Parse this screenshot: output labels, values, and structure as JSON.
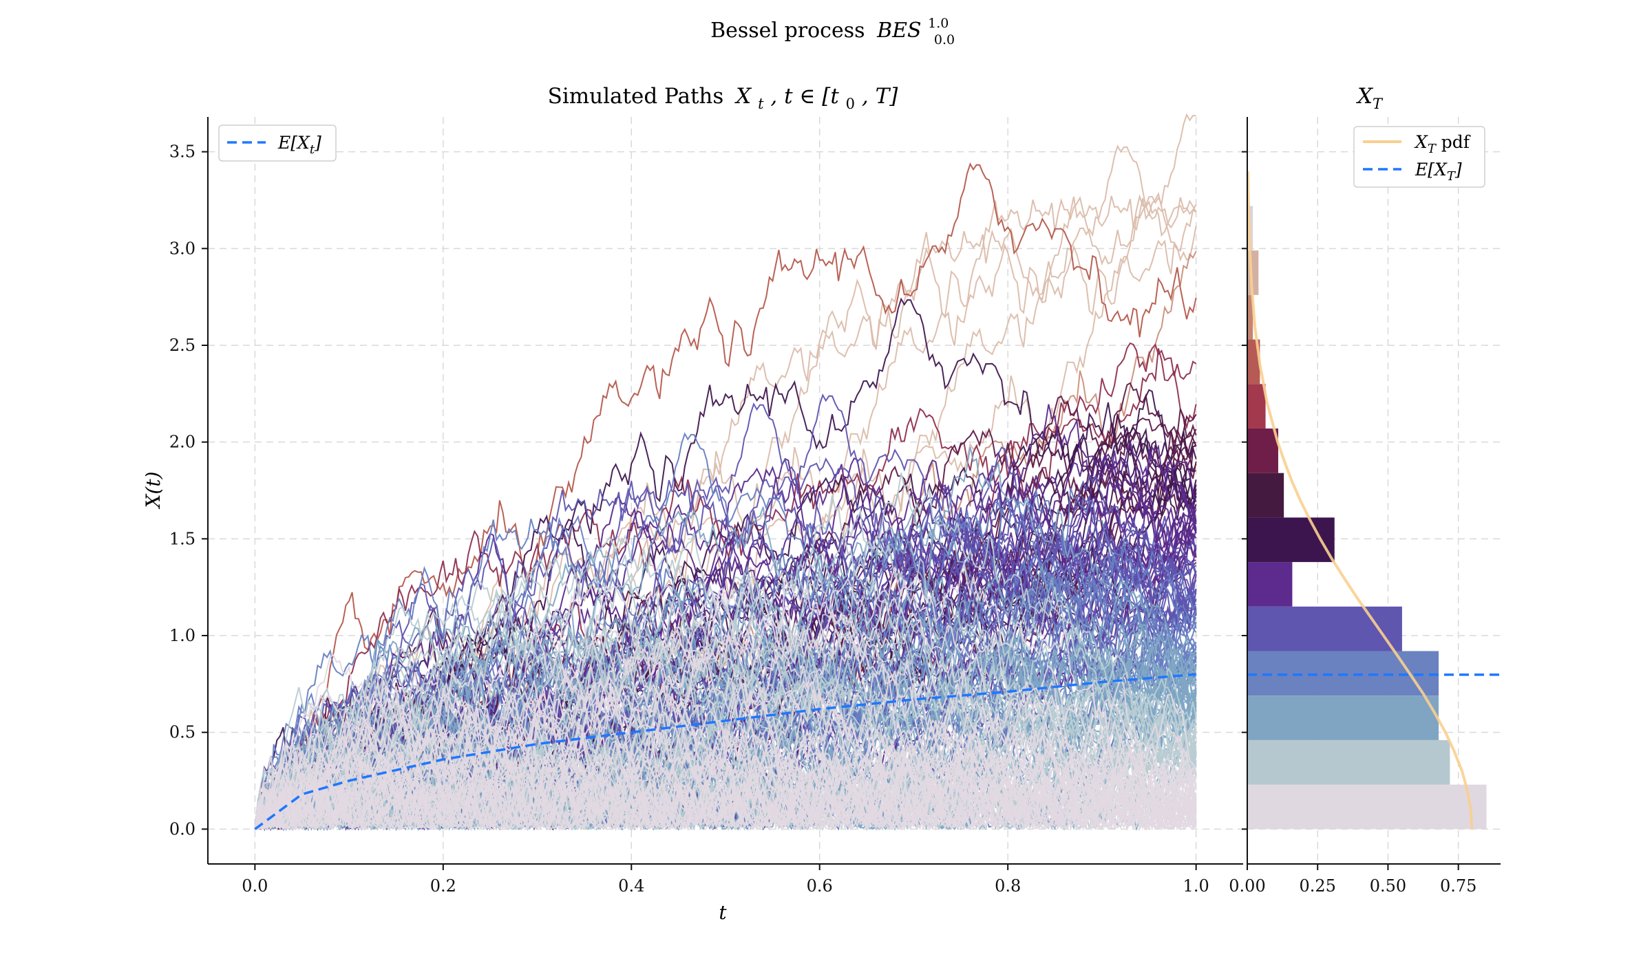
{
  "figure": {
    "suptitle": "Bessel process",
    "suptitle_math": "BES",
    "suptitle_sup": "1.0",
    "suptitle_sub": "0.0"
  },
  "chart_data": [
    {
      "type": "line",
      "title_text": "Simulated Paths",
      "title_math": "X",
      "title_sub": "t",
      "title_rest": ", t ∈ [t",
      "title_sub2": "0",
      "title_end": ", T]",
      "xlabel": "t",
      "ylabel": "X(t)",
      "xlim": [
        -0.05,
        1.05
      ],
      "ylim": [
        -0.18,
        3.68
      ],
      "xticks": [
        "0.0",
        "0.2",
        "0.4",
        "0.6",
        "0.8",
        "1.0"
      ],
      "yticks": [
        "0.0",
        "0.5",
        "1.0",
        "1.5",
        "2.0",
        "2.5",
        "3.0",
        "3.5"
      ],
      "grid": true,
      "legend_position": "upper-left",
      "legend": [
        {
          "label": "E[X",
          "sub": "t",
          "close": "]",
          "color": "#1f77ff",
          "style": "dashed"
        }
      ],
      "n_paths": 200,
      "t_range": [
        0,
        1
      ],
      "x0": 0.0,
      "mean_series": {
        "name": "E[X_t]",
        "x": [
          0.0,
          0.05,
          0.1,
          0.2,
          0.3,
          0.4,
          0.5,
          0.6,
          0.7,
          0.8,
          0.9,
          1.0
        ],
        "y": [
          0.0,
          0.18,
          0.25,
          0.36,
          0.44,
          0.5,
          0.56,
          0.62,
          0.67,
          0.71,
          0.76,
          0.8
        ],
        "color": "#1f77ff"
      },
      "path_colormap": [
        "#e2d9e2",
        "#b8ccd3",
        "#80a6c4",
        "#6780c2",
        "#5e55b0",
        "#5a2a8c",
        "#3f1750",
        "#5d1b48",
        "#8f2f4e",
        "#b5594c",
        "#c9907b",
        "#dbbcab"
      ]
    },
    {
      "type": "bar",
      "orientation": "horizontal",
      "title_math": "X",
      "title_sub": "T",
      "xlim": [
        0,
        0.9
      ],
      "xticks": [
        "0.00",
        "0.25",
        "0.50",
        "0.75"
      ],
      "bins": [
        {
          "from": 0.0,
          "to": 0.23,
          "density": 0.85,
          "color": "#e0d8e1"
        },
        {
          "from": 0.23,
          "to": 0.46,
          "density": 0.72,
          "color": "#b5c8cf"
        },
        {
          "from": 0.46,
          "to": 0.69,
          "density": 0.68,
          "color": "#80a5c3"
        },
        {
          "from": 0.69,
          "to": 0.92,
          "density": 0.68,
          "color": "#6a82c0"
        },
        {
          "from": 0.92,
          "to": 1.15,
          "density": 0.55,
          "color": "#5f56b0"
        },
        {
          "from": 1.15,
          "to": 1.38,
          "density": 0.16,
          "color": "#5d2a8e"
        },
        {
          "from": 1.38,
          "to": 1.61,
          "density": 0.31,
          "color": "#3d154e"
        },
        {
          "from": 1.61,
          "to": 1.84,
          "density": 0.13,
          "color": "#451a40"
        },
        {
          "from": 1.84,
          "to": 2.07,
          "density": 0.11,
          "color": "#6e1e48"
        },
        {
          "from": 2.07,
          "to": 2.3,
          "density": 0.065,
          "color": "#a2394c"
        },
        {
          "from": 2.3,
          "to": 2.53,
          "density": 0.045,
          "color": "#b55a54"
        },
        {
          "from": 2.53,
          "to": 2.76,
          "density": 0.02,
          "color": "#c48572"
        },
        {
          "from": 2.76,
          "to": 2.99,
          "density": 0.04,
          "color": "#d2b1a4"
        },
        {
          "from": 2.99,
          "to": 3.22,
          "density": 0.02,
          "color": "#ddd3dc"
        }
      ],
      "pdf": {
        "label_math": "X",
        "label_sub": "T",
        "label_rest": " pdf",
        "color": "#f9cf8f",
        "y": [
          0.0,
          0.1,
          0.2,
          0.3,
          0.4,
          0.5,
          0.6,
          0.7,
          0.8,
          0.9,
          1.0,
          1.1,
          1.2,
          1.3,
          1.4,
          1.5,
          1.6,
          1.7,
          1.8,
          1.9,
          2.0,
          2.2,
          2.4,
          2.6,
          2.8,
          3.0,
          3.2,
          3.4
        ],
        "density": [
          0.798,
          0.794,
          0.782,
          0.763,
          0.736,
          0.704,
          0.666,
          0.625,
          0.579,
          0.532,
          0.484,
          0.436,
          0.388,
          0.343,
          0.299,
          0.259,
          0.222,
          0.188,
          0.158,
          0.132,
          0.108,
          0.071,
          0.045,
          0.027,
          0.016,
          0.009,
          0.005,
          0.002
        ]
      },
      "mean": {
        "value": 0.798,
        "label": "E[X",
        "sub": "T",
        "close": "]",
        "color": "#1f77ff"
      },
      "legend_position": "upper-right",
      "grid": true
    }
  ]
}
